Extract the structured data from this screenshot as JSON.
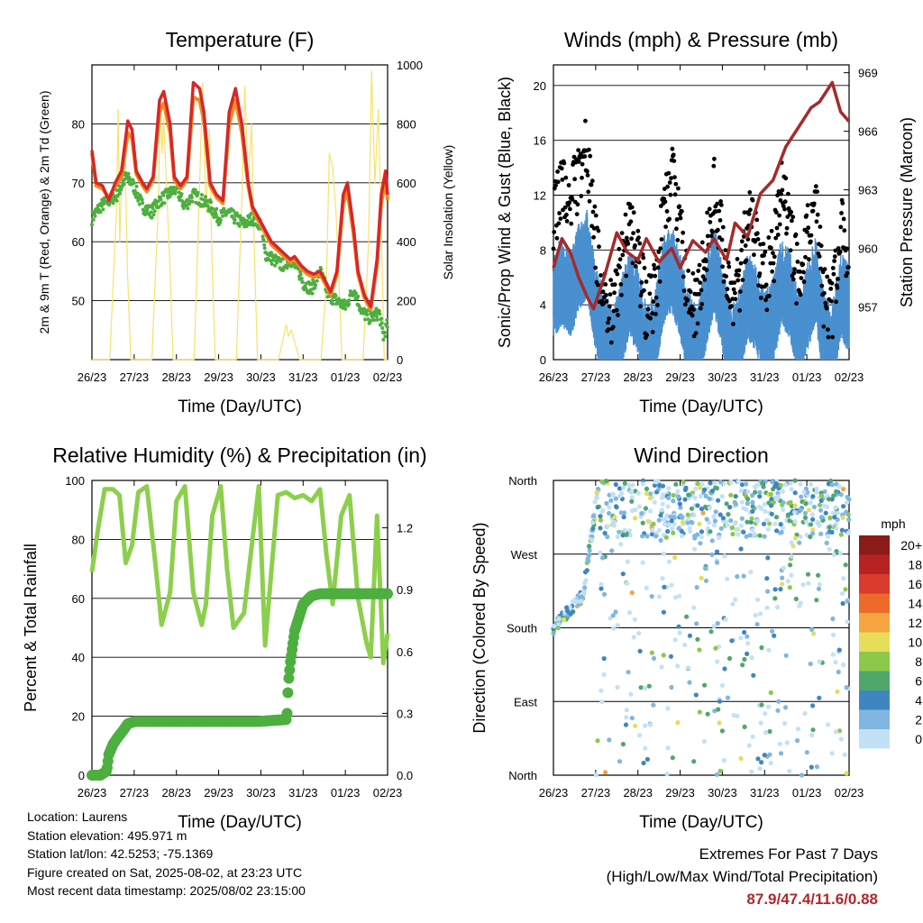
{
  "time_ticks": [
    "26/23",
    "27/23",
    "28/23",
    "29/23",
    "30/23",
    "31/23",
    "01/23",
    "02/23"
  ],
  "chart_data": [
    {
      "id": "temperature",
      "type": "line",
      "title": "Temperature (F)",
      "xlabel": "Time (Day/UTC)",
      "ylabel": "2m & 9m T (Red, Orange) & 2m Td (Green)",
      "y2label": "Solar Insolation (Yellow)",
      "ylim": [
        40,
        90
      ],
      "y_ticks": [
        50,
        60,
        70,
        80
      ],
      "y2lim": [
        0,
        1000
      ],
      "y2_ticks": [
        0,
        200,
        400,
        600,
        800,
        1000
      ],
      "x_unit": "days since 26/23",
      "series": [
        {
          "key": "t2m",
          "color": "#d62728",
          "axis": "left",
          "x": [
            0,
            0.1,
            0.25,
            0.4,
            0.55,
            0.7,
            0.85,
            0.95,
            1.05,
            1.2,
            1.3,
            1.45,
            1.6,
            1.7,
            1.85,
            1.95,
            2.1,
            2.25,
            2.4,
            2.55,
            2.65,
            2.8,
            2.95,
            3.1,
            3.25,
            3.4,
            3.55,
            3.7,
            3.8,
            3.95,
            4.1,
            4.25,
            4.4,
            4.55,
            4.7,
            4.8,
            4.95,
            5.1,
            5.25,
            5.4,
            5.55,
            5.65,
            5.8,
            5.95,
            6.05,
            6.2,
            6.3,
            6.45,
            6.6,
            6.75,
            6.85,
            6.95,
            7.0
          ],
          "y": [
            75.5,
            70,
            69.5,
            67,
            70,
            72,
            80.5,
            79,
            72,
            70,
            69,
            71,
            84,
            85.5,
            80,
            71,
            69.5,
            71,
            87,
            86,
            82,
            70,
            68,
            67,
            82,
            86,
            80,
            70,
            66,
            64,
            62,
            60,
            59,
            58,
            57,
            57.5,
            56,
            55,
            54.5,
            55,
            53,
            51.5,
            55,
            68,
            70,
            62,
            55,
            51,
            49,
            57,
            68,
            72,
            68
          ]
        },
        {
          "key": "t9m",
          "color": "#f28a1e",
          "axis": "left",
          "x": [
            0,
            0.1,
            0.25,
            0.4,
            0.55,
            0.7,
            0.85,
            0.95,
            1.05,
            1.2,
            1.3,
            1.45,
            1.6,
            1.7,
            1.85,
            1.95,
            2.1,
            2.25,
            2.4,
            2.55,
            2.65,
            2.8,
            2.95,
            3.1,
            3.25,
            3.4,
            3.55,
            3.7,
            3.8,
            3.95,
            4.1,
            4.25,
            4.4,
            4.55,
            4.7,
            4.8,
            4.95,
            5.1,
            5.25,
            5.4,
            5.55,
            5.65,
            5.8,
            5.95,
            6.05,
            6.2,
            6.3,
            6.45,
            6.6,
            6.75,
            6.85,
            6.95,
            7.0
          ],
          "y": [
            75,
            69.5,
            69,
            67.5,
            69.5,
            71,
            78.5,
            77.5,
            71.5,
            69.5,
            68.5,
            70.5,
            82,
            83.5,
            78.5,
            70.5,
            69,
            70.5,
            84.5,
            84,
            80.5,
            69.5,
            67.5,
            66.5,
            80,
            84,
            78.5,
            69.5,
            65.5,
            63.5,
            61.5,
            59.5,
            58.5,
            57.5,
            56.5,
            57,
            55.5,
            54.5,
            54,
            54.5,
            52.5,
            51,
            54.5,
            66.5,
            68.5,
            61,
            54.5,
            50.5,
            48.5,
            56,
            66.5,
            70.5,
            67
          ]
        },
        {
          "key": "td2m",
          "color": "#4daf3f",
          "axis": "left",
          "x": [
            0,
            0.2,
            0.4,
            0.6,
            0.8,
            0.95,
            1.2,
            1.4,
            1.6,
            1.8,
            2.0,
            2.2,
            2.4,
            2.6,
            2.8,
            3.0,
            3.2,
            3.4,
            3.6,
            3.8,
            4.0,
            4.1,
            4.3,
            4.5,
            4.7,
            4.9,
            5.0,
            5.2,
            5.4,
            5.6,
            5.8,
            6.0,
            6.2,
            6.4,
            6.6,
            6.8,
            6.9,
            7.0
          ],
          "y": [
            64,
            66,
            67,
            68,
            71,
            70,
            66,
            65,
            67,
            68,
            69,
            66,
            68,
            67,
            66,
            64,
            65,
            64,
            63,
            64,
            63,
            58,
            57,
            56,
            57,
            55,
            53,
            52,
            55,
            51,
            50,
            49,
            52,
            48,
            47,
            48,
            44,
            46
          ]
        },
        {
          "key": "solar",
          "color": "#f6e26b",
          "axis": "right",
          "x": [
            0,
            0.42,
            0.58,
            0.62,
            0.66,
            0.7,
            0.78,
            0.84,
            0.92,
            1.42,
            1.58,
            1.62,
            1.66,
            1.7,
            1.76,
            1.84,
            1.92,
            2.42,
            2.55,
            2.62,
            2.7,
            2.78,
            2.84,
            2.92,
            3.42,
            3.55,
            3.62,
            3.7,
            3.78,
            3.84,
            3.92,
            4.42,
            4.6,
            4.65,
            4.72,
            4.8,
            4.92,
            5.42,
            5.55,
            5.62,
            5.7,
            5.78,
            5.84,
            5.92,
            6.42,
            6.55,
            6.62,
            6.7,
            6.78,
            6.84,
            6.92,
            7.0
          ],
          "y": [
            0,
            0,
            500,
            850,
            400,
            600,
            750,
            300,
            0,
            0,
            550,
            900,
            700,
            820,
            600,
            350,
            0,
            0,
            600,
            940,
            500,
            780,
            350,
            0,
            0,
            550,
            930,
            600,
            800,
            400,
            0,
            0,
            120,
            80,
            100,
            60,
            0,
            0,
            250,
            700,
            650,
            500,
            300,
            0,
            0,
            400,
            980,
            600,
            850,
            500,
            0,
            0
          ]
        }
      ]
    },
    {
      "id": "winds",
      "type": "scatter",
      "title": "Winds (mph) & Pressure (mb)",
      "xlabel": "Time (Day/UTC)",
      "ylabel": "Sonic/Prop Wind & Gust (Blue, Black)",
      "y2label": "Station Pressure (Maroon)",
      "ylim": [
        0,
        21.5
      ],
      "y_ticks": [
        0,
        4,
        8,
        12,
        16,
        20
      ],
      "y2lim": [
        954.3,
        969.4
      ],
      "y2_ticks": [
        957,
        960,
        963,
        966,
        969
      ],
      "series": [
        {
          "key": "gust",
          "color": "#000000",
          "axis": "left",
          "x": [
            0.0,
            0.2,
            0.4,
            0.6,
            0.8,
            1.0,
            1.2,
            1.4,
            1.6,
            1.8,
            2.0,
            2.2,
            2.4,
            2.6,
            2.8,
            3.0,
            3.2,
            3.4,
            3.6,
            3.8,
            4.0,
            4.2,
            4.4,
            4.6,
            4.8,
            5.0,
            5.2,
            5.4,
            5.6,
            5.8,
            6.0,
            6.2,
            6.4,
            6.6,
            6.8,
            7.0
          ],
          "y": [
            10,
            12,
            11,
            13,
            15,
            8,
            4,
            3,
            6,
            9,
            7,
            3,
            4,
            10,
            13,
            9,
            4,
            3,
            7,
            12,
            8,
            3,
            5,
            10,
            8,
            5,
            7,
            12,
            9,
            5,
            8,
            11,
            4,
            3,
            10,
            7
          ]
        },
        {
          "key": "wind",
          "color": "#4a90d0",
          "axis": "left",
          "x": [
            0.0,
            0.2,
            0.4,
            0.6,
            0.8,
            1.0,
            1.2,
            1.4,
            1.6,
            1.8,
            2.0,
            2.2,
            2.4,
            2.6,
            2.8,
            3.0,
            3.2,
            3.4,
            3.6,
            3.8,
            4.0,
            4.2,
            4.4,
            4.6,
            4.8,
            5.0,
            5.2,
            5.4,
            5.6,
            5.8,
            6.0,
            6.2,
            6.4,
            6.6,
            6.8,
            7.0
          ],
          "y": [
            5,
            6,
            5,
            7,
            8,
            4,
            2,
            1,
            3,
            5,
            4,
            1,
            2,
            6,
            7,
            5,
            2,
            1,
            4,
            7,
            4,
            1,
            2,
            5,
            4,
            2,
            3,
            6,
            5,
            2,
            4,
            6,
            2,
            1,
            5,
            4
          ]
        },
        {
          "key": "pressure",
          "color": "#a52a2a",
          "axis": "right",
          "x": [
            0,
            0.2,
            0.4,
            0.6,
            0.8,
            0.95,
            1.2,
            1.5,
            1.75,
            2.0,
            2.2,
            2.5,
            2.8,
            3.0,
            3.3,
            3.6,
            3.8,
            4.1,
            4.3,
            4.6,
            4.9,
            5.2,
            5.5,
            5.8,
            6.1,
            6.3,
            6.6,
            6.8,
            7.0
          ],
          "y": [
            959,
            960.5,
            959.8,
            958.5,
            957.5,
            956.9,
            958.5,
            960.8,
            959.8,
            959.4,
            960.5,
            959.3,
            960,
            959,
            960.4,
            959.8,
            960.5,
            959.4,
            961.3,
            960.6,
            962.8,
            963.5,
            965.2,
            966.2,
            967.2,
            967.5,
            968.5,
            967,
            966.5
          ]
        }
      ]
    },
    {
      "id": "rh_precip",
      "type": "line",
      "title": "Relative Humidity (%) & Precipitation (in)",
      "xlabel": "Time (Day/UTC)",
      "ylabel": "Percent & Total Rainfall",
      "ylim": [
        0,
        100
      ],
      "y_ticks": [
        0,
        20,
        40,
        60,
        80,
        100
      ],
      "y2lim": [
        0,
        1.43
      ],
      "y2_ticks": [
        0.0,
        0.3,
        0.6,
        0.9,
        1.2
      ],
      "series": [
        {
          "key": "rh",
          "color": "#8ccf4d",
          "axis": "left",
          "x": [
            0,
            0.15,
            0.3,
            0.5,
            0.65,
            0.8,
            0.95,
            1.1,
            1.3,
            1.5,
            1.65,
            1.85,
            2.0,
            2.2,
            2.4,
            2.6,
            2.7,
            2.85,
            3.05,
            3.2,
            3.35,
            3.6,
            3.8,
            3.95,
            4.1,
            4.4,
            4.6,
            4.8,
            5.0,
            5.2,
            5.4,
            5.55,
            5.7,
            5.9,
            6.1,
            6.3,
            6.5,
            6.6,
            6.75,
            6.9,
            7.0
          ],
          "y": [
            69,
            84,
            97,
            97,
            95,
            72,
            78,
            96,
            98,
            72,
            51,
            62,
            93,
            98,
            62,
            51,
            58,
            88,
            98,
            70,
            50,
            55,
            80,
            98,
            44,
            95,
            96,
            94,
            95,
            93,
            97,
            75,
            58,
            88,
            95,
            60,
            45,
            40,
            88,
            38,
            48
          ]
        },
        {
          "key": "precip",
          "color": "#4daf3f",
          "axis": "right",
          "x": [
            0,
            0.2,
            0.35,
            0.4,
            0.5,
            0.6,
            0.75,
            0.85,
            1.0,
            2.0,
            3.0,
            3.9,
            4.6,
            4.62,
            4.65,
            4.7,
            4.8,
            5.0,
            5.2,
            5.4,
            6.0,
            6.5,
            7.0
          ],
          "y": [
            0.0,
            0.0,
            0.02,
            0.1,
            0.15,
            0.18,
            0.22,
            0.25,
            0.26,
            0.26,
            0.26,
            0.26,
            0.27,
            0.3,
            0.45,
            0.55,
            0.7,
            0.83,
            0.87,
            0.88,
            0.88,
            0.88,
            0.88
          ]
        }
      ]
    },
    {
      "id": "wind_direction",
      "type": "scatter",
      "title": "Wind Direction",
      "xlabel": "Time (Day/UTC)",
      "ylabel": "Direction (Colored By Speed)",
      "y_ticks": [
        "North",
        "East",
        "South",
        "West",
        "North"
      ],
      "ylim": [
        0,
        360
      ],
      "legend_title": "mph",
      "legend": [
        "20+",
        "18",
        "16",
        "14",
        "12",
        "10",
        "8",
        "6",
        "4",
        "2",
        "0"
      ],
      "legend_colors": [
        "#8b1a1a",
        "#b62222",
        "#d93a2a",
        "#ee6a2a",
        "#f4a540",
        "#e6dd5a",
        "#8cc84a",
        "#4fa86a",
        "#3f86c0",
        "#7fb6e2",
        "#c3e1f6"
      ]
    }
  ],
  "footer": {
    "location": "Location: Laurens",
    "elevation": "Station elevation: 495.971 m",
    "latlon": "Station lat/lon: 42.5253; -75.1369",
    "created": "Figure created on Sat, 2025-08-02, at 23:23 UTC",
    "recent": "Most recent data timestamp: 2025/08/02 23:15:00"
  },
  "extremes": {
    "title": "Extremes For Past 7 Days",
    "subtitle": "(High/Low/Max Wind/Total Precipitation)",
    "values": "87.9/47.4/11.6/0.88"
  }
}
